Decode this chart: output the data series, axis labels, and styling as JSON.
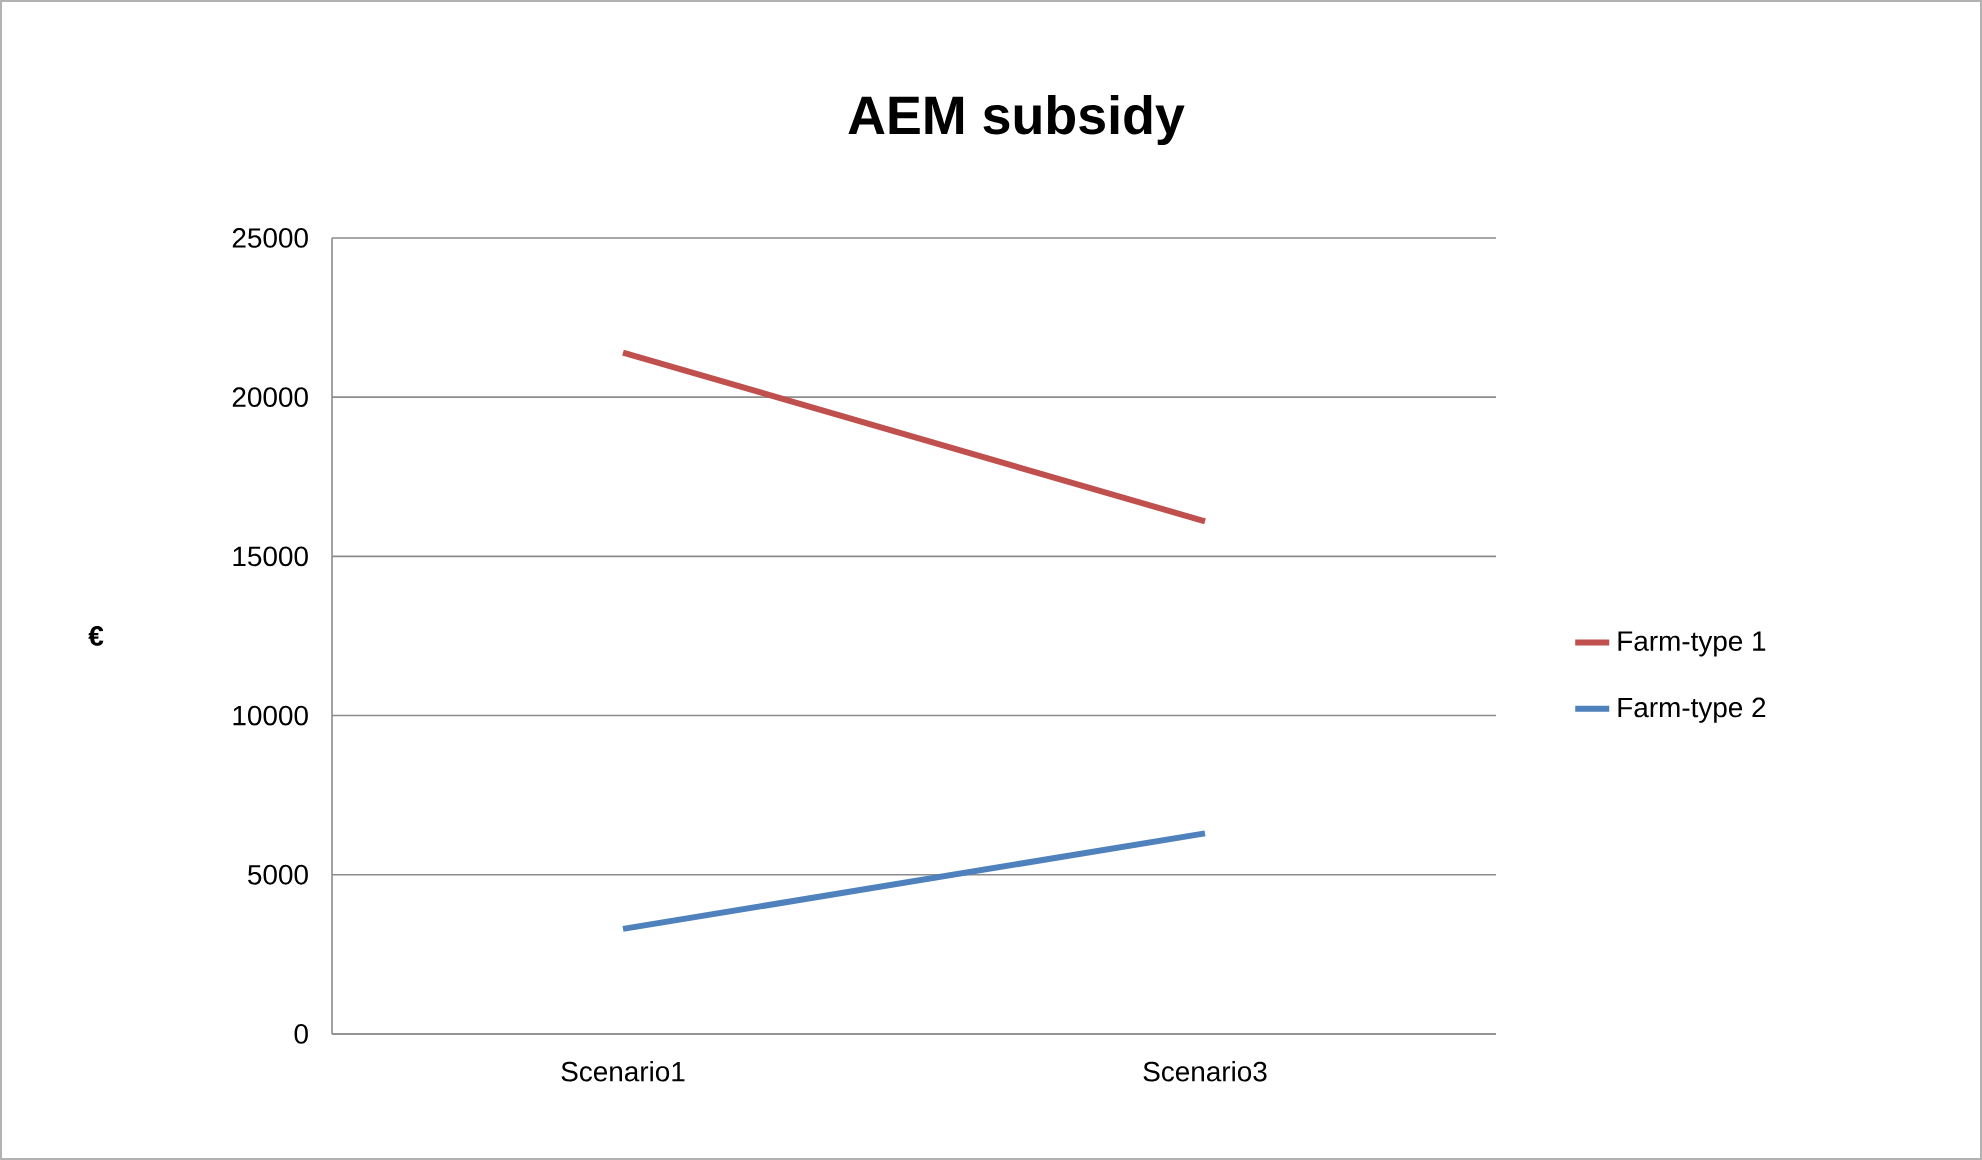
{
  "chart_data": {
    "type": "line",
    "title": "AEM subsidy",
    "ylabel": "€",
    "categories": [
      "Scenario1",
      "Scenario3"
    ],
    "series": [
      {
        "name": "Farm-type 1",
        "color": "#c0504d",
        "values": [
          21400,
          16100
        ]
      },
      {
        "name": "Farm-type 2",
        "color": "#4f81bd",
        "values": [
          3300,
          6300
        ]
      }
    ],
    "ylim": [
      0,
      25000
    ],
    "yticks": [
      0,
      5000,
      10000,
      15000,
      20000,
      25000
    ],
    "grid": "y",
    "legend": "right",
    "marker": "none",
    "line_style": "solid"
  }
}
